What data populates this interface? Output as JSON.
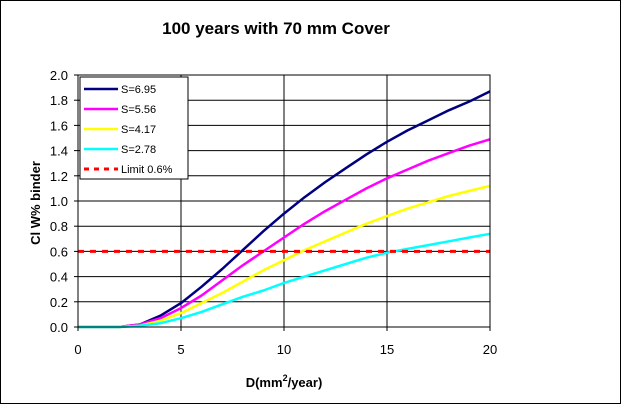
{
  "chart_data": {
    "type": "line",
    "title": "100 years with 70 mm Cover",
    "xlabel_main": "D(mm",
    "xlabel_sup": "2",
    "xlabel_end": "/year)",
    "ylabel": "Cl W% binder",
    "xlim": [
      0,
      20
    ],
    "ylim": [
      0,
      2.0
    ],
    "xticks": [
      "0",
      "5",
      "10",
      "15",
      "20"
    ],
    "xtick_values": [
      0,
      5,
      10,
      15,
      20
    ],
    "yticks": [
      "0.0",
      "0.2",
      "0.4",
      "0.6",
      "0.8",
      "1.0",
      "1.2",
      "1.4",
      "1.6",
      "1.8",
      "2.0"
    ],
    "ytick_values": [
      0,
      0.2,
      0.4,
      0.6,
      0.8,
      1.0,
      1.2,
      1.4,
      1.6,
      1.8,
      2.0
    ],
    "grid": true,
    "legend_position": "top-left",
    "x": [
      0,
      1,
      2,
      3,
      4,
      5,
      6,
      7,
      8,
      9,
      10,
      11,
      12,
      13,
      14,
      15,
      16,
      17,
      18,
      19,
      20
    ],
    "series": [
      {
        "name": "S=6.95",
        "color": "#000080",
        "style": "solid",
        "values": [
          0.0,
          0.0,
          0.0,
          0.02,
          0.09,
          0.19,
          0.32,
          0.46,
          0.61,
          0.76,
          0.9,
          1.03,
          1.15,
          1.26,
          1.37,
          1.47,
          1.56,
          1.64,
          1.72,
          1.79,
          1.87
        ]
      },
      {
        "name": "S=5.56",
        "color": "#ff00ff",
        "style": "solid",
        "values": [
          0.0,
          0.0,
          0.0,
          0.02,
          0.07,
          0.15,
          0.25,
          0.37,
          0.49,
          0.6,
          0.71,
          0.82,
          0.92,
          1.01,
          1.1,
          1.18,
          1.25,
          1.32,
          1.38,
          1.44,
          1.49
        ]
      },
      {
        "name": "S=4.17",
        "color": "#ffff00",
        "style": "solid",
        "values": [
          0.0,
          0.0,
          0.0,
          0.01,
          0.05,
          0.11,
          0.19,
          0.27,
          0.36,
          0.45,
          0.53,
          0.61,
          0.68,
          0.75,
          0.82,
          0.88,
          0.94,
          0.99,
          1.04,
          1.08,
          1.12
        ]
      },
      {
        "name": "S=2.78",
        "color": "#00ffff",
        "style": "solid",
        "values": [
          0.0,
          0.0,
          0.0,
          0.01,
          0.03,
          0.07,
          0.12,
          0.18,
          0.24,
          0.29,
          0.35,
          0.4,
          0.45,
          0.5,
          0.55,
          0.59,
          0.62,
          0.65,
          0.68,
          0.71,
          0.74
        ]
      },
      {
        "name": "Limit 0.6%",
        "color": "#ff0000",
        "style": "dashed",
        "values": [
          0.6,
          0.6,
          0.6,
          0.6,
          0.6,
          0.6,
          0.6,
          0.6,
          0.6,
          0.6,
          0.6,
          0.6,
          0.6,
          0.6,
          0.6,
          0.6,
          0.6,
          0.6,
          0.6,
          0.6,
          0.6
        ]
      }
    ]
  }
}
